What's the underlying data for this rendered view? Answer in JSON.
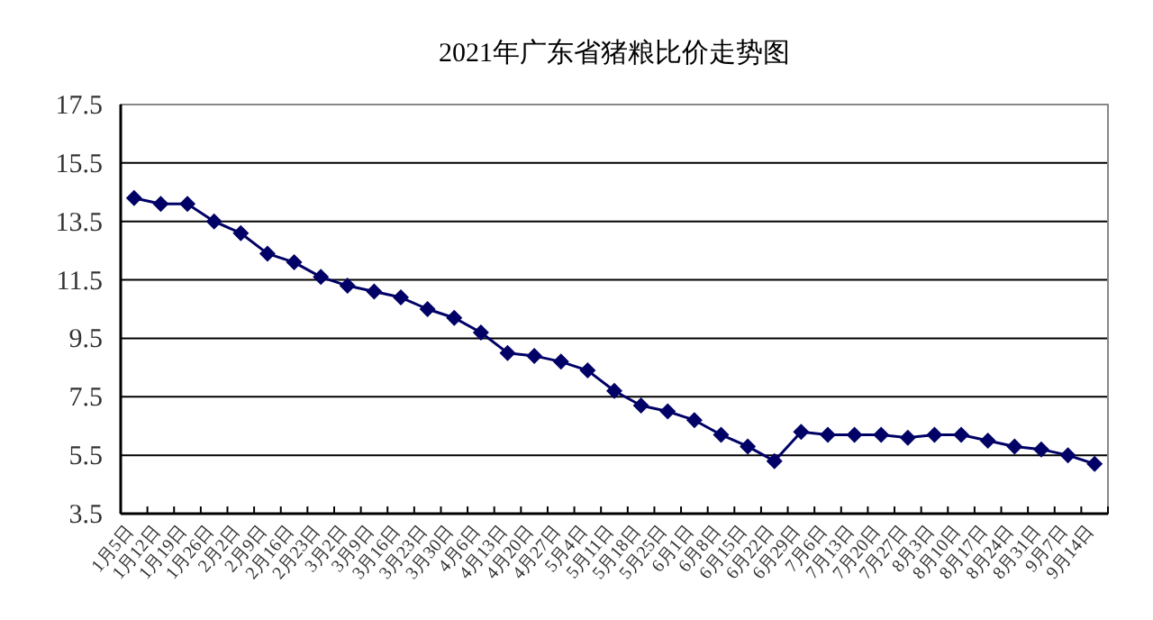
{
  "chart_data": {
    "type": "line",
    "title": "2021年广东省猪粮比价走势图",
    "categories": [
      "1月5日",
      "1月12日",
      "1月19日",
      "1月26日",
      "2月2日",
      "2月9日",
      "2月16日",
      "2月23日",
      "3月2日",
      "3月9日",
      "3月16日",
      "3月23日",
      "3月30日",
      "4月6日",
      "4月13日",
      "4月20日",
      "4月27日",
      "5月4日",
      "5月11日",
      "5月18日",
      "5月25日",
      "6月1日",
      "6月8日",
      "6月15日",
      "6月22日",
      "6月29日",
      "7月6日",
      "7月13日",
      "7月20日",
      "7月27日",
      "8月3日",
      "8月10日",
      "8月17日",
      "8月24日",
      "8月31日",
      "9月7日",
      "9月14日"
    ],
    "series": [
      {
        "color": "#000066",
        "values": [
          14.3,
          14.1,
          14.1,
          13.5,
          13.1,
          12.4,
          12.1,
          11.6,
          11.3,
          11.1,
          10.9,
          10.5,
          10.2,
          9.7,
          9.0,
          8.9,
          8.7,
          8.4,
          7.7,
          7.2,
          7.0,
          6.7,
          6.2,
          5.8,
          5.3,
          6.3,
          6.2,
          6.2,
          6.2,
          6.1,
          6.2,
          6.2,
          6.0,
          5.8,
          5.7,
          5.5,
          5.2
        ]
      }
    ],
    "ylim": [
      3.5,
      17.5
    ],
    "yticks": [
      3.5,
      5.5,
      7.5,
      9.5,
      11.5,
      13.5,
      15.5,
      17.5
    ],
    "grid": "y",
    "marker": "diamond",
    "line_style": "solid"
  }
}
